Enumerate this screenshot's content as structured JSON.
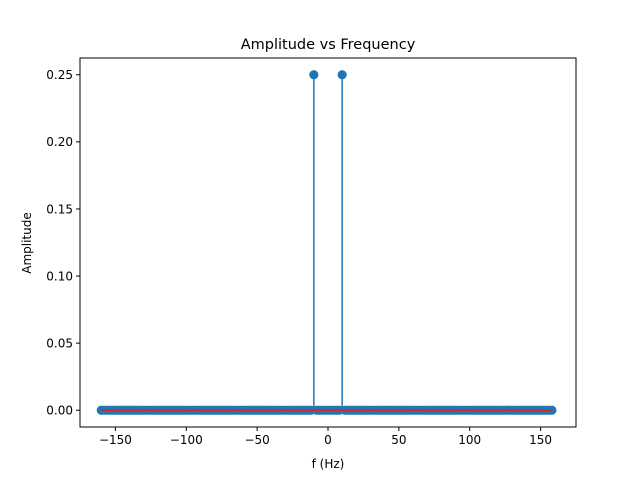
{
  "chart_data": {
    "type": "stem",
    "title": "Amplitude vs Frequency",
    "xlabel": "f (Hz)",
    "ylabel": "Amplitude",
    "xlim": [
      -175,
      175
    ],
    "ylim": [
      -0.0125,
      0.2625
    ],
    "xticks": [
      -150,
      -100,
      -50,
      0,
      50,
      100,
      150
    ],
    "xtick_labels": [
      "−150",
      "−100",
      "−50",
      "0",
      "50",
      "100",
      "150"
    ],
    "yticks": [
      0.0,
      0.05,
      0.1,
      0.15,
      0.2,
      0.25
    ],
    "ytick_labels": [
      "0.00",
      "0.05",
      "0.10",
      "0.15",
      "0.20",
      "0.25"
    ],
    "x_range": [
      -160,
      158
    ],
    "x_step": 2,
    "baseline_value": 0,
    "peaks": [
      {
        "x": -10,
        "y": 0.25
      },
      {
        "x": 10,
        "y": 0.25
      }
    ],
    "colors": {
      "stem": "#1f77b4",
      "baseline": "#d62728"
    }
  }
}
